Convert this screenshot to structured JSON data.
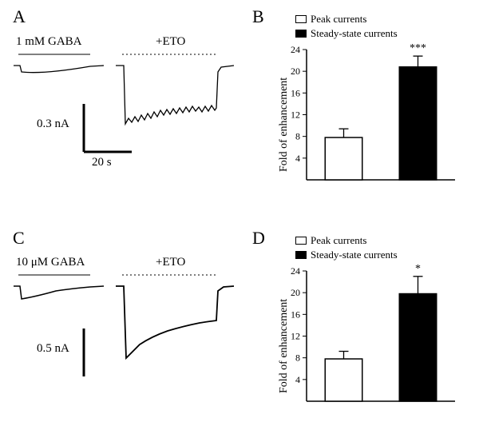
{
  "panelA": {
    "label": "A",
    "condition1": "1 mM GABA",
    "condition2": "+ETO",
    "scale_y": "0.3 nA",
    "scale_x": "20 s",
    "trace": {
      "baseline_y": 0,
      "control_drop": 0.12,
      "eto_peak": 1.0,
      "eto_steady": 0.75,
      "color": "#000000",
      "line_width": 1
    }
  },
  "panelB": {
    "label": "B",
    "legend_peak": "Peak currents",
    "legend_steady": "Steady-state currents",
    "y_label": "Fold of enhancement",
    "y_lim": [
      0,
      24
    ],
    "y_ticks": [
      4,
      8,
      12,
      16,
      20,
      24
    ],
    "bars": [
      {
        "name": "peak",
        "value": 7.8,
        "error": 1.6,
        "fill": "#ffffff",
        "border": "#000000"
      },
      {
        "name": "steady",
        "value": 20.8,
        "error": 2.0,
        "fill": "#000000",
        "border": "#000000"
      }
    ],
    "significance": "***",
    "bar_width": 0.5,
    "axis_color": "#000000",
    "tick_fontsize": 12,
    "label_fontsize": 14
  },
  "panelC": {
    "label": "C",
    "condition1": "10 μM GABA",
    "condition2": "+ETO",
    "scale_y": "0.5 nA",
    "trace": {
      "baseline_y": 0,
      "control_drop": 0.15,
      "eto_peak": 1.0,
      "eto_steady": 0.65,
      "color": "#000000",
      "line_width": 1
    }
  },
  "panelD": {
    "label": "D",
    "legend_peak": "Peak currents",
    "legend_steady": "Steady-state currents",
    "y_label": "Fold of enhancement",
    "y_lim": [
      0,
      24
    ],
    "y_ticks": [
      4,
      8,
      12,
      16,
      20,
      24
    ],
    "bars": [
      {
        "name": "peak",
        "value": 7.8,
        "error": 1.4,
        "fill": "#ffffff",
        "border": "#000000"
      },
      {
        "name": "steady",
        "value": 19.8,
        "error": 3.2,
        "fill": "#000000",
        "border": "#000000"
      }
    ],
    "significance": "*",
    "bar_width": 0.5,
    "axis_color": "#000000",
    "tick_fontsize": 12,
    "label_fontsize": 14
  },
  "colors": {
    "background": "#ffffff",
    "foreground": "#000000"
  }
}
